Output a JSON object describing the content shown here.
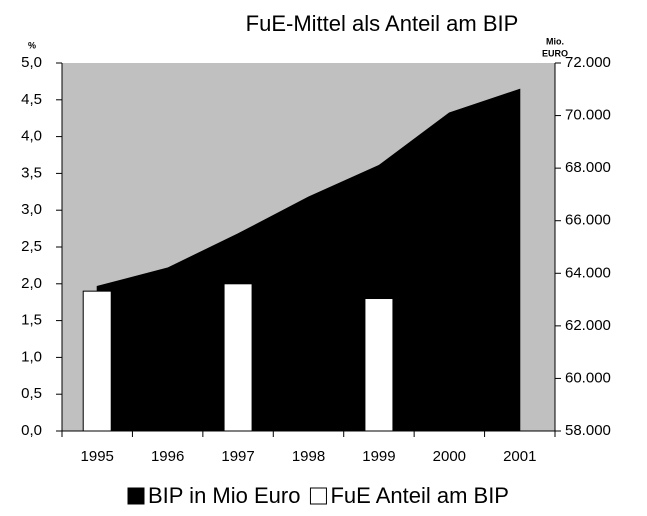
{
  "chart_data": {
    "type": "combo",
    "title": "FuE-Mittel als Anteil am BIP",
    "y_label": "%",
    "y2_label": [
      "Mio.",
      "EURO"
    ],
    "categories": [
      "1995",
      "1996",
      "1997",
      "1998",
      "1999",
      "2000",
      "2001"
    ],
    "series": [
      {
        "name": "BIP in Mio Euro",
        "type": "area",
        "color": "#000000",
        "axis": "y2",
        "values": [
          63500,
          64200,
          65500,
          66900,
          68100,
          70100,
          71000
        ]
      },
      {
        "name": "FuE Anteil am BIP",
        "type": "bar",
        "color": "#ffffff",
        "values": [
          1.9,
          null,
          2.0,
          null,
          1.8,
          null,
          null
        ]
      }
    ],
    "ylim": [
      0,
      5
    ],
    "yticks": [
      {
        "value": 0,
        "label": "0,0"
      },
      {
        "value": 0.5,
        "label": "0,5"
      },
      {
        "value": 1,
        "label": "1,0"
      },
      {
        "value": 1.5,
        "label": "1,5"
      },
      {
        "value": 2,
        "label": "2,0"
      },
      {
        "value": 2.5,
        "label": "2,5"
      },
      {
        "value": 3,
        "label": "3,0"
      },
      {
        "value": 3.5,
        "label": "3,5"
      },
      {
        "value": 4,
        "label": "4,0"
      },
      {
        "value": 4.5,
        "label": "4,5"
      },
      {
        "value": 5,
        "label": "5,0"
      }
    ],
    "y2lim": [
      58000,
      72000
    ],
    "y2ticks": [
      {
        "value": 58000,
        "label": "58.000"
      },
      {
        "value": 60000,
        "label": "60.000"
      },
      {
        "value": 62000,
        "label": "62.000"
      },
      {
        "value": 64000,
        "label": "64.000"
      },
      {
        "value": 66000,
        "label": "66.000"
      },
      {
        "value": 68000,
        "label": "68.000"
      },
      {
        "value": 70000,
        "label": "70.000"
      },
      {
        "value": 72000,
        "label": "72.000"
      }
    ],
    "plot_background": "#c0c0c0",
    "grid": false,
    "legend": "bottom"
  }
}
